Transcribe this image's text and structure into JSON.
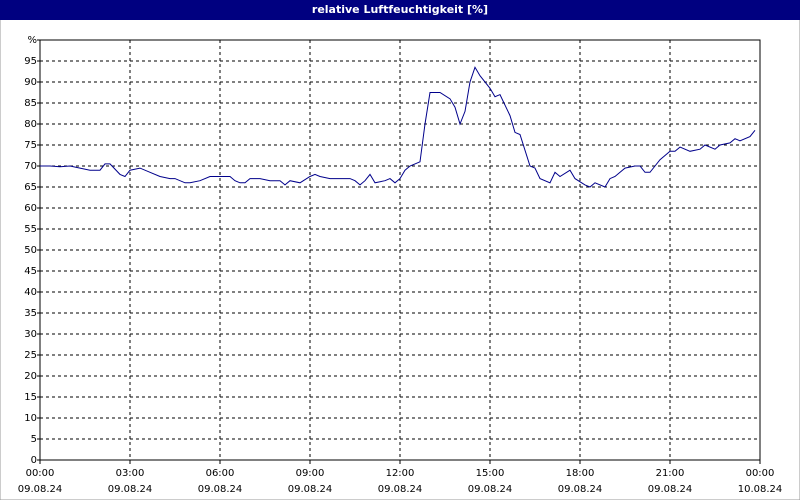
{
  "chart_data": {
    "type": "line",
    "title": "relative Luftfeuchtigkeit [%]",
    "x": [
      "09.08.24 00:00",
      "09.08.24 00:20",
      "09.08.24 00:40",
      "09.08.24 01:00",
      "09.08.24 01:20",
      "09.08.24 01:40",
      "09.08.24 02:00",
      "09.08.24 02:10",
      "09.08.24 02:20",
      "09.08.24 02:40",
      "09.08.24 02:50",
      "09.08.24 03:00",
      "09.08.24 03:20",
      "09.08.24 03:40",
      "09.08.24 04:00",
      "09.08.24 04:20",
      "09.08.24 04:30",
      "09.08.24 04:50",
      "09.08.24 05:00",
      "09.08.24 05:20",
      "09.08.24 05:40",
      "09.08.24 06:00",
      "09.08.24 06:20",
      "09.08.24 06:30",
      "09.08.24 06:40",
      "09.08.24 06:50",
      "09.08.24 07:00",
      "09.08.24 07:20",
      "09.08.24 07:40",
      "09.08.24 08:00",
      "09.08.24 08:10",
      "09.08.24 08:20",
      "09.08.24 08:40",
      "09.08.24 09:00",
      "09.08.24 09:10",
      "09.08.24 09:20",
      "09.08.24 09:40",
      "09.08.24 10:00",
      "09.08.24 10:20",
      "09.08.24 10:30",
      "09.08.24 10:40",
      "09.08.24 10:50",
      "09.08.24 11:00",
      "09.08.24 11:10",
      "09.08.24 11:30",
      "09.08.24 11:40",
      "09.08.24 11:50",
      "09.08.24 12:00",
      "09.08.24 12:10",
      "09.08.24 12:20",
      "09.08.24 12:40",
      "09.08.24 12:50",
      "09.08.24 13:00",
      "09.08.24 13:20",
      "09.08.24 13:40",
      "09.08.24 13:50",
      "09.08.24 14:00",
      "09.08.24 14:10",
      "09.08.24 14:20",
      "09.08.24 14:30",
      "09.08.24 14:40",
      "09.08.24 15:00",
      "09.08.24 15:10",
      "09.08.24 15:20",
      "09.08.24 15:40",
      "09.08.24 15:50",
      "09.08.24 16:00",
      "09.08.24 16:20",
      "09.08.24 16:30",
      "09.08.24 16:40",
      "09.08.24 17:00",
      "09.08.24 17:10",
      "09.08.24 17:20",
      "09.08.24 17:40",
      "09.08.24 17:50",
      "09.08.24 18:10",
      "09.08.24 18:20",
      "09.08.24 18:30",
      "09.08.24 18:50",
      "09.08.24 19:00",
      "09.08.24 19:10",
      "09.08.24 19:30",
      "09.08.24 19:50",
      "09.08.24 20:00",
      "09.08.24 20:10",
      "09.08.24 20:20",
      "09.08.24 20:30",
      "09.08.24 20:40",
      "09.08.24 20:50",
      "09.08.24 21:00",
      "09.08.24 21:10",
      "09.08.24 21:20",
      "09.08.24 21:40",
      "09.08.24 22:00",
      "09.08.24 22:10",
      "09.08.24 22:30",
      "09.08.24 22:40",
      "09.08.24 23:00",
      "09.08.24 23:10",
      "09.08.24 23:20",
      "09.08.24 23:40",
      "09.08.24 23:50"
    ],
    "series": [
      {
        "color": "#00008b",
        "values": [
          70,
          70,
          69.8,
          70,
          69.5,
          69,
          69,
          70.5,
          70.5,
          68,
          67.5,
          69,
          69.5,
          68.5,
          67.5,
          67,
          67,
          66,
          66,
          66.5,
          67.5,
          67.5,
          67.5,
          66.5,
          66,
          66,
          67,
          67,
          66.5,
          66.5,
          65.5,
          66.5,
          66,
          67.5,
          68,
          67.5,
          67,
          67,
          67,
          66.5,
          65.5,
          66.5,
          68,
          66,
          66.5,
          67,
          66,
          67,
          69,
          70,
          71,
          80,
          87.5,
          87.5,
          86,
          84,
          80,
          83,
          90,
          93.5,
          91.5,
          88.5,
          86.5,
          87,
          82,
          78,
          77.5,
          70,
          69.5,
          67,
          66,
          68.5,
          67.5,
          69,
          67,
          65.5,
          65,
          66,
          65,
          67,
          67.5,
          69.5,
          70,
          70,
          68.5,
          68.5,
          70,
          71.5,
          72.5,
          73.5,
          73.5,
          74.5,
          73.5,
          74,
          75,
          74,
          75,
          75.5,
          76.5,
          76,
          77,
          78.5
        ]
      }
    ],
    "xlim": [
      "09.08.24 00:00",
      "10.08.24 00:00"
    ],
    "xticks": [
      {
        "value": "09.08.24 00:00",
        "label": [
          "00:00",
          "09.08.24"
        ]
      },
      {
        "value": "09.08.24 03:00",
        "label": [
          "03:00",
          "09.08.24"
        ]
      },
      {
        "value": "09.08.24 06:00",
        "label": [
          "06:00",
          "09.08.24"
        ]
      },
      {
        "value": "09.08.24 09:00",
        "label": [
          "09:00",
          "09.08.24"
        ]
      },
      {
        "value": "09.08.24 12:00",
        "label": [
          "12:00",
          "09.08.24"
        ]
      },
      {
        "value": "09.08.24 15:00",
        "label": [
          "15:00",
          "09.08.24"
        ]
      },
      {
        "value": "09.08.24 18:00",
        "label": [
          "18:00",
          "09.08.24"
        ]
      },
      {
        "value": "09.08.24 21:00",
        "label": [
          "21:00",
          "09.08.24"
        ]
      },
      {
        "value": "10.08.24 00:00",
        "label": [
          "00:00",
          "10.08.24"
        ]
      }
    ],
    "ylim": [
      0,
      100
    ],
    "yticks": [
      0,
      5,
      10,
      15,
      20,
      25,
      30,
      35,
      40,
      45,
      50,
      55,
      60,
      65,
      70,
      75,
      80,
      85,
      90,
      95,
      {
        "value": 100,
        "label": "%"
      }
    ],
    "grid": true
  }
}
